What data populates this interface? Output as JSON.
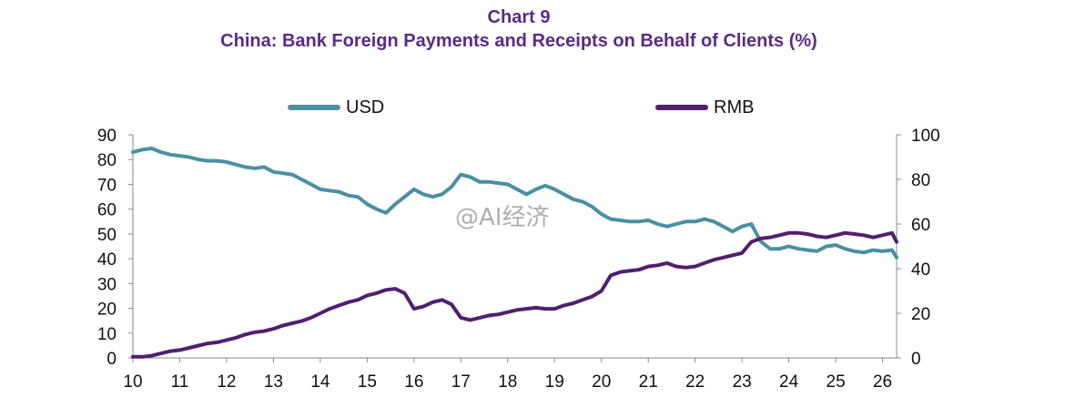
{
  "title": "Chart 9",
  "subtitle": "China: Bank Foreign Payments and Receipts on Behalf of Clients (%)",
  "watermark": "@AI经济",
  "colors": {
    "title": "#5b2a86",
    "usd": "#4a8fa4",
    "rmb": "#4f1f70"
  },
  "chart_data": {
    "type": "line",
    "title": "Chart 9",
    "subtitle": "China: Bank Foreign Payments and Receipts on Behalf of Clients (%)",
    "xlabel": "",
    "ylabel": "",
    "x_ticks": [
      "10",
      "11",
      "12",
      "13",
      "14",
      "15",
      "16",
      "17",
      "18",
      "19",
      "20",
      "21",
      "22",
      "23",
      "24",
      "25",
      "26"
    ],
    "xlim": [
      2010,
      2026.3
    ],
    "ylim_left": [
      0,
      90
    ],
    "ylim_right": [
      0,
      100
    ],
    "y_ticks_left": [
      "0",
      "10",
      "20",
      "30",
      "40",
      "50",
      "60",
      "70",
      "80",
      "90"
    ],
    "y_ticks_right": [
      "0",
      "20",
      "40",
      "60",
      "80",
      "100"
    ],
    "legend": {
      "placement": "top"
    },
    "grid": false,
    "series": [
      {
        "name": "USD",
        "axis": "left",
        "color": "#4a8fa4",
        "x": [
          2010.0,
          2010.2,
          2010.4,
          2010.6,
          2010.8,
          2011.0,
          2011.2,
          2011.4,
          2011.6,
          2011.8,
          2012.0,
          2012.2,
          2012.4,
          2012.6,
          2012.8,
          2013.0,
          2013.2,
          2013.4,
          2013.6,
          2013.8,
          2014.0,
          2014.2,
          2014.4,
          2014.6,
          2014.8,
          2015.0,
          2015.2,
          2015.4,
          2015.6,
          2015.8,
          2016.0,
          2016.2,
          2016.4,
          2016.6,
          2016.8,
          2017.0,
          2017.2,
          2017.4,
          2017.6,
          2017.8,
          2018.0,
          2018.2,
          2018.4,
          2018.6,
          2018.8,
          2019.0,
          2019.2,
          2019.4,
          2019.6,
          2019.8,
          2020.0,
          2020.2,
          2020.4,
          2020.6,
          2020.8,
          2021.0,
          2021.2,
          2021.4,
          2021.6,
          2021.8,
          2022.0,
          2022.2,
          2022.4,
          2022.6,
          2022.8,
          2023.0,
          2023.2,
          2023.4,
          2023.6,
          2023.8,
          2024.0,
          2024.2,
          2024.4,
          2024.6,
          2024.8,
          2025.0,
          2025.2,
          2025.4,
          2025.6,
          2025.8,
          2026.0,
          2026.2,
          2026.3
        ],
        "values": [
          83,
          84,
          84.5,
          83,
          82,
          81.5,
          81,
          80,
          79.5,
          79.5,
          79,
          78,
          77,
          76.5,
          77,
          75,
          74.5,
          74,
          72,
          70,
          68,
          67.5,
          67,
          65.5,
          65,
          62,
          60,
          58.5,
          62,
          65,
          68,
          66,
          65,
          66,
          69,
          74,
          73,
          71,
          71,
          70.5,
          70,
          68,
          66,
          68,
          69.5,
          68,
          66,
          64,
          63,
          61,
          58,
          56,
          55.5,
          55,
          55,
          55.5,
          54,
          53,
          54,
          55,
          55,
          56,
          55,
          53,
          51,
          53,
          54,
          47,
          44,
          44,
          45,
          44,
          43.5,
          43,
          45,
          45.5,
          44,
          43,
          42.5,
          43.5,
          43,
          43.5,
          40.5
        ]
      },
      {
        "name": "RMB",
        "axis": "right",
        "color": "#4f1f70",
        "x": [
          2010.0,
          2010.2,
          2010.4,
          2010.6,
          2010.8,
          2011.0,
          2011.2,
          2011.4,
          2011.6,
          2011.8,
          2012.0,
          2012.2,
          2012.4,
          2012.6,
          2012.8,
          2013.0,
          2013.2,
          2013.4,
          2013.6,
          2013.8,
          2014.0,
          2014.2,
          2014.4,
          2014.6,
          2014.8,
          2015.0,
          2015.2,
          2015.4,
          2015.6,
          2015.8,
          2016.0,
          2016.2,
          2016.4,
          2016.6,
          2016.8,
          2017.0,
          2017.2,
          2017.4,
          2017.6,
          2017.8,
          2018.0,
          2018.2,
          2018.4,
          2018.6,
          2018.8,
          2019.0,
          2019.2,
          2019.4,
          2019.6,
          2019.8,
          2020.0,
          2020.2,
          2020.4,
          2020.6,
          2020.8,
          2021.0,
          2021.2,
          2021.4,
          2021.6,
          2021.8,
          2022.0,
          2022.2,
          2022.4,
          2022.6,
          2022.8,
          2023.0,
          2023.2,
          2023.4,
          2023.6,
          2023.8,
          2024.0,
          2024.2,
          2024.4,
          2024.6,
          2024.8,
          2025.0,
          2025.2,
          2025.4,
          2025.6,
          2025.8,
          2026.0,
          2026.2,
          2026.3
        ],
        "values": [
          0.5,
          0.5,
          1,
          2,
          3,
          3.5,
          4.5,
          5.5,
          6.5,
          7,
          8,
          9,
          10.5,
          11.5,
          12,
          13,
          14.5,
          15.5,
          16.5,
          18,
          20,
          22,
          23.5,
          25,
          26,
          28,
          29,
          30.5,
          31,
          29,
          22,
          23,
          25,
          26,
          24,
          18,
          17,
          18,
          19,
          19.5,
          20.5,
          21.5,
          22,
          22.5,
          22,
          22,
          23.5,
          24.5,
          26,
          27.5,
          30,
          37,
          38.5,
          39,
          39.5,
          41,
          41.5,
          42.5,
          41,
          40.5,
          41,
          42.5,
          44,
          45,
          46,
          47,
          52,
          53.5,
          54,
          55,
          56,
          56,
          55.5,
          54.5,
          54,
          55,
          56,
          55.5,
          55,
          54,
          55,
          56,
          52
        ]
      }
    ]
  }
}
